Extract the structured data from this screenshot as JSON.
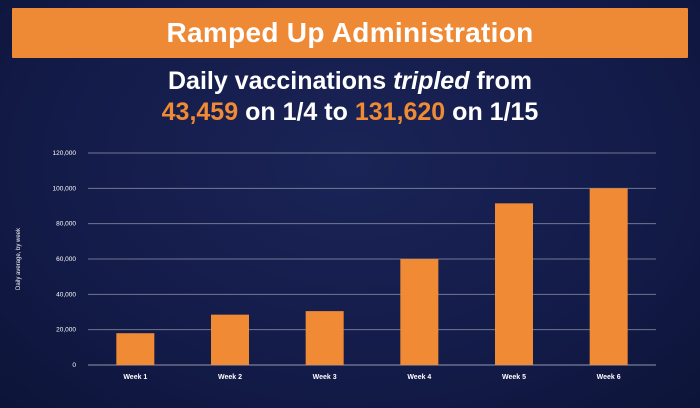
{
  "banner": {
    "title": "Ramped Up Administration"
  },
  "headline": {
    "line1_prefix": "Daily vaccinations",
    "line1_emph": "tripled",
    "line1_suffix": "from",
    "start_value": "43,459",
    "on_1": "on",
    "start_date": "1/4",
    "to": "to",
    "end_value": "131,620",
    "on_2": "on",
    "end_date": "1/15"
  },
  "colors": {
    "background": "#131b49",
    "bar": "#f08a35",
    "banner": "#ee8a36",
    "grid": "#ffffff",
    "text": "#ffffff"
  },
  "chart_data": {
    "type": "bar",
    "categories": [
      "Week 1",
      "Week 2",
      "Week 3",
      "Week 4",
      "Week 5",
      "Week 6"
    ],
    "values": [
      18000,
      28500,
      30500,
      60000,
      91500,
      100000
    ],
    "ylabel": "Daily average, by week",
    "ylim": [
      0,
      120000
    ],
    "yticks": [
      0,
      20000,
      40000,
      60000,
      80000,
      100000,
      120000
    ],
    "ytick_labels": [
      "0",
      "20,000",
      "40,000",
      "60,000",
      "80,000",
      "100,000",
      "120,000"
    ],
    "grid": true,
    "legend": "none"
  }
}
